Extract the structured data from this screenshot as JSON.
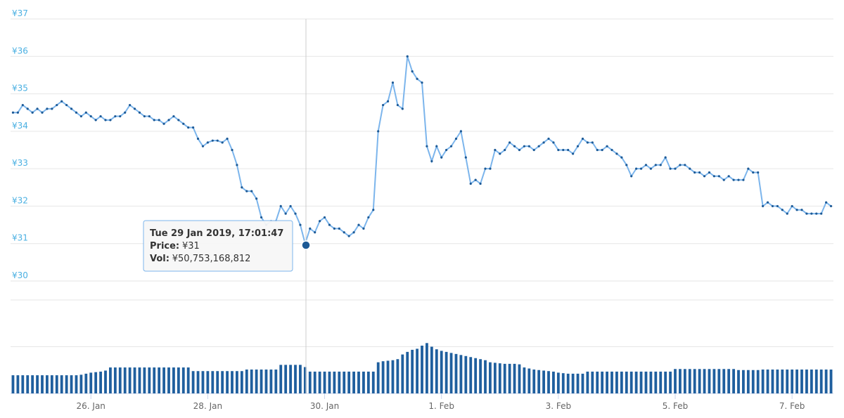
{
  "chart_data": {
    "type": "line",
    "xlim": [
      "2019-01-24T15:00",
      "2019-02-07T17:00"
    ],
    "xticks": [
      {
        "value": "2019-01-26T00:00",
        "label": "26. Jan"
      },
      {
        "value": "2019-01-28T00:00",
        "label": "28. Jan"
      },
      {
        "value": "2019-01-30T00:00",
        "label": "30. Jan"
      },
      {
        "value": "2019-02-01T00:00",
        "label": "1. Feb"
      },
      {
        "value": "2019-02-03T00:00",
        "label": "3. Feb"
      },
      {
        "value": "2019-02-05T00:00",
        "label": "5. Feb"
      },
      {
        "value": "2019-02-07T00:00",
        "label": "7. Feb"
      }
    ],
    "ylim": [
      30,
      37
    ],
    "yticks": [
      {
        "value": 30,
        "label": "¥30"
      },
      {
        "value": 31,
        "label": "¥31"
      },
      {
        "value": 32,
        "label": "¥32"
      },
      {
        "value": 33,
        "label": "¥33"
      },
      {
        "value": 34,
        "label": "¥34"
      },
      {
        "value": 35,
        "label": "¥35"
      },
      {
        "value": 36,
        "label": "¥36"
      },
      {
        "value": 37,
        "label": "¥37"
      }
    ],
    "y2lim": [
      0,
      180000000000
    ],
    "y2ticks": [
      0,
      90000000000,
      180000000000
    ],
    "grid": true,
    "x": [
      "2019-01-24T16:00",
      "2019-01-24T18:00",
      "2019-01-24T20:00",
      "2019-01-24T22:00",
      "2019-01-25T00:00",
      "2019-01-25T02:00",
      "2019-01-25T04:00",
      "2019-01-25T06:00",
      "2019-01-25T08:00",
      "2019-01-25T10:00",
      "2019-01-25T12:00",
      "2019-01-25T14:00",
      "2019-01-25T16:00",
      "2019-01-25T18:00",
      "2019-01-25T20:00",
      "2019-01-25T22:00",
      "2019-01-26T00:00",
      "2019-01-26T02:00",
      "2019-01-26T04:00",
      "2019-01-26T06:00",
      "2019-01-26T08:00",
      "2019-01-26T10:00",
      "2019-01-26T12:00",
      "2019-01-26T14:00",
      "2019-01-26T16:00",
      "2019-01-26T18:00",
      "2019-01-26T20:00",
      "2019-01-26T22:00",
      "2019-01-27T00:00",
      "2019-01-27T02:00",
      "2019-01-27T04:00",
      "2019-01-27T06:00",
      "2019-01-27T08:00",
      "2019-01-27T10:00",
      "2019-01-27T12:00",
      "2019-01-27T14:00",
      "2019-01-27T16:00",
      "2019-01-27T18:00",
      "2019-01-27T20:00",
      "2019-01-27T22:00",
      "2019-01-28T00:00",
      "2019-01-28T02:00",
      "2019-01-28T04:00",
      "2019-01-28T06:00",
      "2019-01-28T08:00",
      "2019-01-28T10:00",
      "2019-01-28T12:00",
      "2019-01-28T14:00",
      "2019-01-28T16:00",
      "2019-01-28T18:00",
      "2019-01-28T20:00",
      "2019-01-28T22:00",
      "2019-01-29T00:00",
      "2019-01-29T02:00",
      "2019-01-29T04:00",
      "2019-01-29T06:00",
      "2019-01-29T08:00",
      "2019-01-29T10:00",
      "2019-01-29T12:00",
      "2019-01-29T14:00",
      "2019-01-29T16:00",
      "2019-01-29T18:00",
      "2019-01-29T20:00",
      "2019-01-29T22:00",
      "2019-01-30T00:00",
      "2019-01-30T02:00",
      "2019-01-30T04:00",
      "2019-01-30T06:00",
      "2019-01-30T08:00",
      "2019-01-30T10:00",
      "2019-01-30T12:00",
      "2019-01-30T14:00",
      "2019-01-30T16:00",
      "2019-01-30T18:00",
      "2019-01-30T20:00",
      "2019-01-30T22:00",
      "2019-01-31T00:00",
      "2019-01-31T02:00",
      "2019-01-31T04:00",
      "2019-01-31T06:00",
      "2019-01-31T08:00",
      "2019-01-31T10:00",
      "2019-01-31T12:00",
      "2019-01-31T14:00",
      "2019-01-31T16:00",
      "2019-01-31T18:00",
      "2019-01-31T20:00",
      "2019-01-31T22:00",
      "2019-02-01T00:00",
      "2019-02-01T02:00",
      "2019-02-01T04:00",
      "2019-02-01T06:00",
      "2019-02-01T08:00",
      "2019-02-01T10:00",
      "2019-02-01T12:00",
      "2019-02-01T14:00",
      "2019-02-01T16:00",
      "2019-02-01T18:00",
      "2019-02-01T20:00",
      "2019-02-01T22:00",
      "2019-02-02T00:00",
      "2019-02-02T02:00",
      "2019-02-02T04:00",
      "2019-02-02T06:00",
      "2019-02-02T08:00",
      "2019-02-02T10:00",
      "2019-02-02T12:00",
      "2019-02-02T14:00",
      "2019-02-02T16:00",
      "2019-02-02T18:00",
      "2019-02-02T20:00",
      "2019-02-02T22:00",
      "2019-02-03T00:00",
      "2019-02-03T02:00",
      "2019-02-03T04:00",
      "2019-02-03T06:00",
      "2019-02-03T08:00",
      "2019-02-03T10:00",
      "2019-02-03T12:00",
      "2019-02-03T14:00",
      "2019-02-03T16:00",
      "2019-02-03T18:00",
      "2019-02-03T20:00",
      "2019-02-03T22:00",
      "2019-02-04T00:00",
      "2019-02-04T02:00",
      "2019-02-04T04:00",
      "2019-02-04T06:00",
      "2019-02-04T08:00",
      "2019-02-04T10:00",
      "2019-02-04T12:00",
      "2019-02-04T14:00",
      "2019-02-04T16:00",
      "2019-02-04T18:00",
      "2019-02-04T20:00",
      "2019-02-04T22:00",
      "2019-02-05T00:00",
      "2019-02-05T02:00",
      "2019-02-05T04:00",
      "2019-02-05T06:00",
      "2019-02-05T08:00",
      "2019-02-05T10:00",
      "2019-02-05T12:00",
      "2019-02-05T14:00",
      "2019-02-05T16:00",
      "2019-02-05T18:00",
      "2019-02-05T20:00",
      "2019-02-05T22:00",
      "2019-02-06T00:00",
      "2019-02-06T02:00",
      "2019-02-06T04:00",
      "2019-02-06T06:00",
      "2019-02-06T08:00",
      "2019-02-06T10:00",
      "2019-02-06T12:00",
      "2019-02-06T14:00",
      "2019-02-06T16:00",
      "2019-02-06T18:00",
      "2019-02-06T20:00",
      "2019-02-06T22:00",
      "2019-02-07T00:00",
      "2019-02-07T02:00",
      "2019-02-07T04:00",
      "2019-02-07T06:00",
      "2019-02-07T08:00",
      "2019-02-07T10:00",
      "2019-02-07T12:00",
      "2019-02-07T14:00",
      "2019-02-07T16:00"
    ],
    "series": [
      {
        "name": "Price",
        "color": "#7cb5ec",
        "marker_color": "#1d5a96",
        "values": [
          34.5,
          34.5,
          34.7,
          34.6,
          34.5,
          34.6,
          34.5,
          34.6,
          34.6,
          34.7,
          34.8,
          34.7,
          34.6,
          34.5,
          34.4,
          34.5,
          34.4,
          34.3,
          34.4,
          34.3,
          34.3,
          34.4,
          34.4,
          34.5,
          34.7,
          34.6,
          34.5,
          34.4,
          34.4,
          34.3,
          34.3,
          34.2,
          34.3,
          34.4,
          34.3,
          34.2,
          34.1,
          34.1,
          33.8,
          33.6,
          33.7,
          33.75,
          33.75,
          33.7,
          33.8,
          33.5,
          33.1,
          32.5,
          32.4,
          32.4,
          32.2,
          31.7,
          31.5,
          31.6,
          31.6,
          32.0,
          31.8,
          32.0,
          31.8,
          31.5,
          31.0,
          31.4,
          31.3,
          31.6,
          31.7,
          31.5,
          31.4,
          31.4,
          31.3,
          31.2,
          31.3,
          31.5,
          31.4,
          31.7,
          31.9,
          34.0,
          34.7,
          34.8,
          35.3,
          34.7,
          34.6,
          36.0,
          35.6,
          35.4,
          35.3,
          33.6,
          33.2,
          33.6,
          33.3,
          33.5,
          33.6,
          33.8,
          34.0,
          33.3,
          32.6,
          32.7,
          32.6,
          33.0,
          33.0,
          33.5,
          33.4,
          33.5,
          33.7,
          33.6,
          33.5,
          33.6,
          33.6,
          33.5,
          33.6,
          33.7,
          33.8,
          33.7,
          33.5,
          33.5,
          33.5,
          33.4,
          33.6,
          33.8,
          33.7,
          33.7,
          33.5,
          33.5,
          33.6,
          33.5,
          33.4,
          33.3,
          33.1,
          32.8,
          33.0,
          33.0,
          33.1,
          33.0,
          33.1,
          33.1,
          33.3,
          33.0,
          33.0,
          33.1,
          33.1,
          33.0,
          32.9,
          32.9,
          32.8,
          32.9,
          32.8,
          32.8,
          32.7,
          32.8,
          32.7,
          32.7,
          32.7,
          33.0,
          32.9,
          32.9,
          32.0,
          32.1,
          32.0,
          32.0,
          31.9,
          31.8,
          32.0,
          31.9,
          31.9,
          31.8,
          31.8,
          31.8,
          31.8,
          32.1,
          32.0
        ]
      },
      {
        "name": "Vol",
        "type": "bar",
        "axis": "y2",
        "color": "#1f5f9e",
        "values": [
          35000000000,
          35000000000,
          35000000000,
          35000000000,
          35000000000,
          35000000000,
          35000000000,
          35000000000,
          35000000000,
          35000000000,
          35000000000,
          35000000000,
          35000000000,
          35000000000,
          36000000000,
          38000000000,
          40000000000,
          41000000000,
          42000000000,
          44000000000,
          50000000000,
          50000000000,
          50000000000,
          50000000000,
          50000000000,
          50000000000,
          50000000000,
          50000000000,
          50000000000,
          50000000000,
          50000000000,
          50000000000,
          50000000000,
          50000000000,
          50000000000,
          50000000000,
          50000000000,
          43000000000,
          43000000000,
          43000000000,
          43000000000,
          43000000000,
          43000000000,
          43000000000,
          43000000000,
          43000000000,
          43000000000,
          43000000000,
          46000000000,
          46000000000,
          46000000000,
          46000000000,
          46000000000,
          46000000000,
          46000000000,
          55000000000,
          55000000000,
          55000000000,
          55000000000,
          55000000000,
          50753168812,
          42000000000,
          42000000000,
          42000000000,
          42000000000,
          42000000000,
          42000000000,
          42000000000,
          42000000000,
          42000000000,
          42000000000,
          42000000000,
          42000000000,
          42000000000,
          42000000000,
          60000000000,
          62000000000,
          63000000000,
          64000000000,
          66000000000,
          75000000000,
          80000000000,
          84000000000,
          86000000000,
          92000000000,
          97000000000,
          90000000000,
          85000000000,
          82000000000,
          80000000000,
          78000000000,
          76000000000,
          74000000000,
          72000000000,
          70000000000,
          68000000000,
          66000000000,
          64000000000,
          60000000000,
          59000000000,
          58000000000,
          57000000000,
          57000000000,
          57000000000,
          56000000000,
          50000000000,
          48000000000,
          46000000000,
          45000000000,
          44000000000,
          43000000000,
          42000000000,
          40000000000,
          39000000000,
          38000000000,
          38000000000,
          38000000000,
          38000000000,
          42000000000,
          42000000000,
          42000000000,
          42000000000,
          42000000000,
          42000000000,
          42000000000,
          42000000000,
          42000000000,
          42000000000,
          42000000000,
          42000000000,
          42000000000,
          42000000000,
          42000000000,
          42000000000,
          42000000000,
          42000000000,
          47000000000,
          47000000000,
          47000000000,
          47000000000,
          47000000000,
          47000000000,
          47000000000,
          47000000000,
          47000000000,
          47000000000,
          47000000000,
          47000000000,
          47000000000,
          45000000000,
          45000000000,
          45000000000,
          45000000000,
          45000000000,
          46000000000,
          46000000000,
          46000000000,
          46000000000,
          46000000000,
          46000000000,
          46000000000,
          46000000000,
          46000000000,
          46000000000,
          46000000000,
          46000000000,
          46000000000,
          46000000000,
          46000000000
        ]
      }
    ],
    "tooltip": {
      "title": "Tue 29 Jan 2019, 17:01:47",
      "price_key": "Price:",
      "price": "¥31",
      "vol_key": "Vol:",
      "vol": "¥50,753,168,812"
    }
  }
}
